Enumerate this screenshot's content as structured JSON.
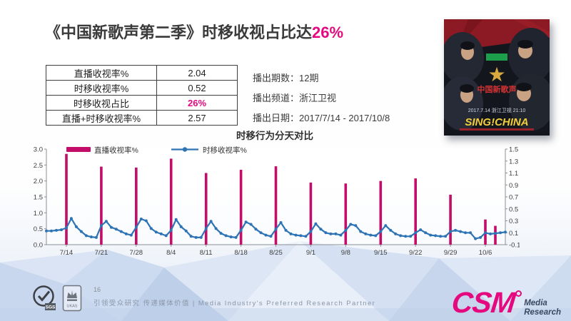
{
  "slide_title": {
    "text": "《中国新歌声第二季》时移收视占比达",
    "highlight": "26%"
  },
  "summary_table": {
    "rows": [
      {
        "label": "直播收视率%",
        "value": "2.04"
      },
      {
        "label": "时移收视率%",
        "value": "0.52"
      },
      {
        "label": "时移收视占比",
        "value": "26%"
      },
      {
        "label": "直播+时移收视率%",
        "value": "2.57"
      }
    ]
  },
  "broadcast_info": {
    "lines": [
      {
        "label": "播出期数：",
        "value": "12期"
      },
      {
        "label": "播出频道：",
        "value": "浙江卫视"
      },
      {
        "label": "播出日期：",
        "value": "2017/7/14 - 2017/10/8"
      }
    ]
  },
  "poster": {
    "show_logo_text": "中国新歌声",
    "air_text": "2017.7.14 浙江卫视 21:10",
    "brand": "SING!CHINA"
  },
  "footer": {
    "page_number": "16",
    "slogan_cn": "引领受众研究 传递媒体价值",
    "slogan_en": "| Media Industry's Preferred Research Partner",
    "cert_badges": [
      "SGS",
      "UKAS"
    ],
    "logo": {
      "text": "CSM",
      "sub1": "Media",
      "sub2": "Research"
    }
  },
  "colors": {
    "accent_pink": "#E5097F",
    "bar_pink": "#C30D68",
    "line_blue": "#2E74B5"
  },
  "chart_data": {
    "type": "bar",
    "subtype": "bar+line combo, dual axis",
    "title": "时移行为分天对比",
    "legend_position": "top-inside",
    "grid": false,
    "legend": [
      {
        "name": "直播收视率%",
        "type": "bar",
        "color": "#C30D68",
        "axis": "left"
      },
      {
        "name": "时移收视率%",
        "type": "line",
        "color": "#2E74B5",
        "axis": "right"
      }
    ],
    "left_axis": {
      "min": 0.0,
      "max": 3.0,
      "step": 0.5
    },
    "right_axis": {
      "min": -0.1,
      "max": 1.5,
      "step": 0.2
    },
    "days_total": 93,
    "x_start_date": "7/10",
    "x_ticks": [
      {
        "day": 4,
        "label": "7/14"
      },
      {
        "day": 11,
        "label": "7/21"
      },
      {
        "day": 18,
        "label": "7/28"
      },
      {
        "day": 25,
        "label": "8/4"
      },
      {
        "day": 32,
        "label": "8/11"
      },
      {
        "day": 39,
        "label": "8/18"
      },
      {
        "day": 46,
        "label": "8/25"
      },
      {
        "day": 53,
        "label": "9/1"
      },
      {
        "day": 60,
        "label": "9/8"
      },
      {
        "day": 67,
        "label": "9/15"
      },
      {
        "day": 74,
        "label": "9/22"
      },
      {
        "day": 81,
        "label": "9/29"
      },
      {
        "day": 88,
        "label": "10/6"
      }
    ],
    "bars": [
      {
        "date": "7/14",
        "day": 4,
        "value": 2.85
      },
      {
        "date": "7/21",
        "day": 11,
        "value": 2.45
      },
      {
        "date": "7/28",
        "day": 18,
        "value": 2.42
      },
      {
        "date": "8/4",
        "day": 25,
        "value": 2.7
      },
      {
        "date": "8/11",
        "day": 32,
        "value": 2.25
      },
      {
        "date": "8/18",
        "day": 39,
        "value": 2.35
      },
      {
        "date": "8/25",
        "day": 46,
        "value": 2.46
      },
      {
        "date": "9/1",
        "day": 53,
        "value": 1.95
      },
      {
        "date": "9/8",
        "day": 60,
        "value": 1.92
      },
      {
        "date": "9/15",
        "day": 67,
        "value": 2.0
      },
      {
        "date": "9/22",
        "day": 74,
        "value": 2.08
      },
      {
        "date": "9/29",
        "day": 81,
        "value": 1.57
      },
      {
        "date": "10/6",
        "day": 88,
        "value": 0.79
      },
      {
        "date": "10/8",
        "day": 90,
        "value": 0.59
      }
    ],
    "line_daily_values": [
      0.13,
      0.13,
      0.14,
      0.15,
      0.18,
      0.34,
      0.2,
      0.12,
      0.05,
      0.03,
      0.02,
      0.22,
      0.29,
      0.19,
      0.16,
      0.12,
      0.08,
      0.06,
      0.19,
      0.33,
      0.3,
      0.17,
      0.11,
      0.08,
      0.05,
      0.14,
      0.32,
      0.2,
      0.13,
      0.04,
      0.02,
      0.02,
      0.17,
      0.29,
      0.17,
      0.09,
      0.05,
      0.03,
      0.02,
      0.14,
      0.28,
      0.24,
      0.16,
      0.1,
      0.06,
      0.04,
      0.16,
      0.27,
      0.14,
      0.08,
      0.06,
      0.05,
      0.04,
      0.12,
      0.25,
      0.16,
      0.1,
      0.08,
      0.08,
      0.06,
      0.14,
      0.24,
      0.22,
      0.12,
      0.08,
      0.06,
      0.05,
      0.12,
      0.22,
      0.14,
      0.08,
      0.05,
      0.04,
      0.04,
      0.1,
      0.15,
      0.1,
      0.06,
      0.05,
      0.04,
      0.04,
      0.12,
      0.14,
      0.12,
      0.1,
      0.1,
      0.0,
      0.02,
      0.1,
      0.08,
      0.09,
      0.1,
      0.11
    ]
  }
}
